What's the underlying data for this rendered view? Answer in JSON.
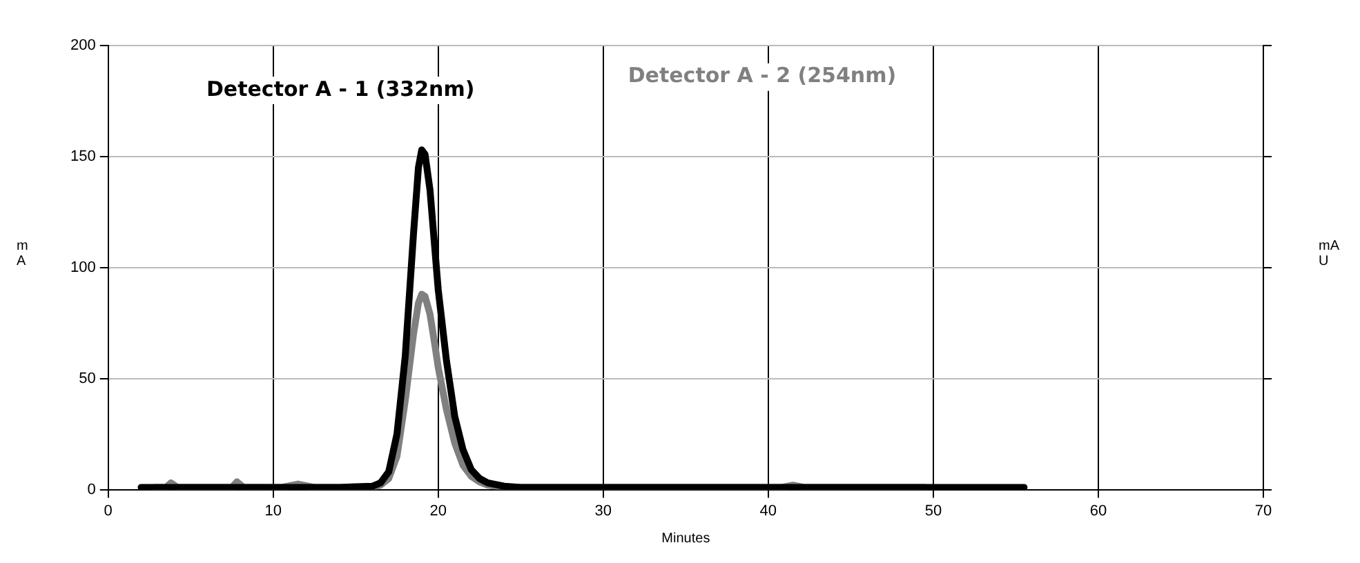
{
  "chart_data": {
    "type": "line",
    "xlabel": "Minutes",
    "ylabel": "mA",
    "y2label": "mAU",
    "xlim": [
      0,
      70
    ],
    "xticks": [
      0,
      10,
      20,
      30,
      40,
      50,
      60,
      70
    ],
    "ylim": [
      0,
      200
    ],
    "yticks": [
      0,
      50,
      100,
      150,
      200
    ],
    "grid": true,
    "legend": false,
    "marker": "none",
    "line_style": "solid",
    "series": [
      {
        "name": "Detector A - 1 (332nm)",
        "color": "#000000",
        "x": [
          2,
          5,
          10,
          14,
          16,
          16.5,
          17,
          17.5,
          18,
          18.5,
          18.8,
          19,
          19.2,
          19.5,
          19.8,
          20,
          20.5,
          21,
          21.5,
          22,
          22.5,
          23,
          24,
          25,
          30,
          40,
          50,
          55.5
        ],
        "values": [
          1,
          1,
          1,
          1,
          1.5,
          3,
          8,
          25,
          60,
          115,
          145,
          153,
          151,
          135,
          108,
          90,
          58,
          33,
          18,
          9,
          5,
          3,
          1.5,
          1,
          1,
          1,
          1,
          1
        ]
      },
      {
        "name": "Detector A - 2 (254nm)",
        "color": "#808080",
        "x": [
          2.8,
          3.5,
          3.8,
          4.2,
          7,
          7.5,
          7.8,
          8.2,
          10.5,
          11.5,
          12.5,
          16,
          16.5,
          17,
          17.5,
          18,
          18.5,
          18.8,
          19,
          19.2,
          19.5,
          19.8,
          20,
          20.5,
          21,
          21.5,
          22,
          22.5,
          23,
          24,
          25,
          30,
          40.8,
          41.5,
          42.2,
          49.5
        ],
        "values": [
          1,
          1,
          3,
          1,
          1,
          1,
          3.5,
          1,
          1,
          2.5,
          1,
          1,
          2,
          5,
          15,
          40,
          70,
          84,
          88,
          87,
          79,
          65,
          55,
          36,
          21,
          11,
          6,
          3.5,
          2,
          1,
          1,
          1,
          1,
          2,
          1,
          1
        ]
      }
    ]
  }
}
